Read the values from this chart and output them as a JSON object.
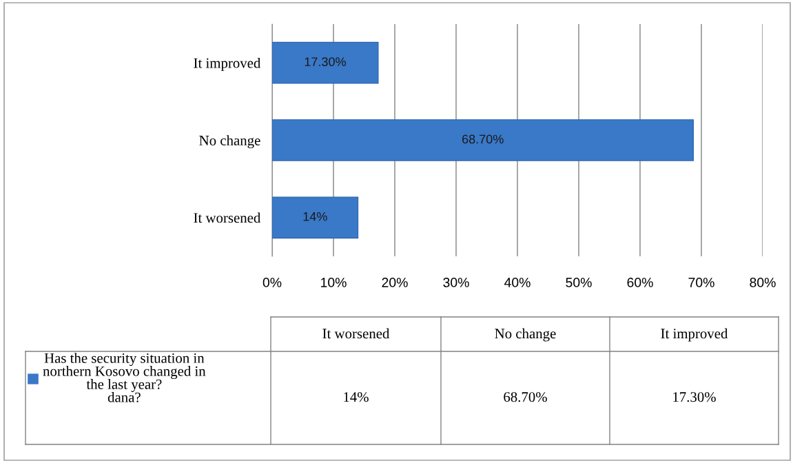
{
  "chart_data": {
    "type": "bar",
    "orientation": "horizontal",
    "categories": [
      "It improved",
      "No change",
      "It worsened"
    ],
    "series": [
      {
        "name": "Has the security situation in northern Kosovo changed in the last year?\ndana?",
        "color": "#3a78c8",
        "values": [
          17.3,
          68.7,
          14
        ],
        "value_labels": [
          "17.30%",
          "68.70%",
          "14%"
        ]
      }
    ],
    "xlim": [
      0,
      80
    ],
    "xticks": [
      {
        "value": 0,
        "label": "0%"
      },
      {
        "value": 10,
        "label": "10%"
      },
      {
        "value": 20,
        "label": "20%"
      },
      {
        "value": 30,
        "label": "30%"
      },
      {
        "value": 40,
        "label": "40%"
      },
      {
        "value": 50,
        "label": "50%"
      },
      {
        "value": 60,
        "label": "60%"
      },
      {
        "value": 70,
        "label": "70%"
      },
      {
        "value": 80,
        "label": "80%"
      }
    ],
    "grid": "x",
    "legend": "bottom"
  }
}
